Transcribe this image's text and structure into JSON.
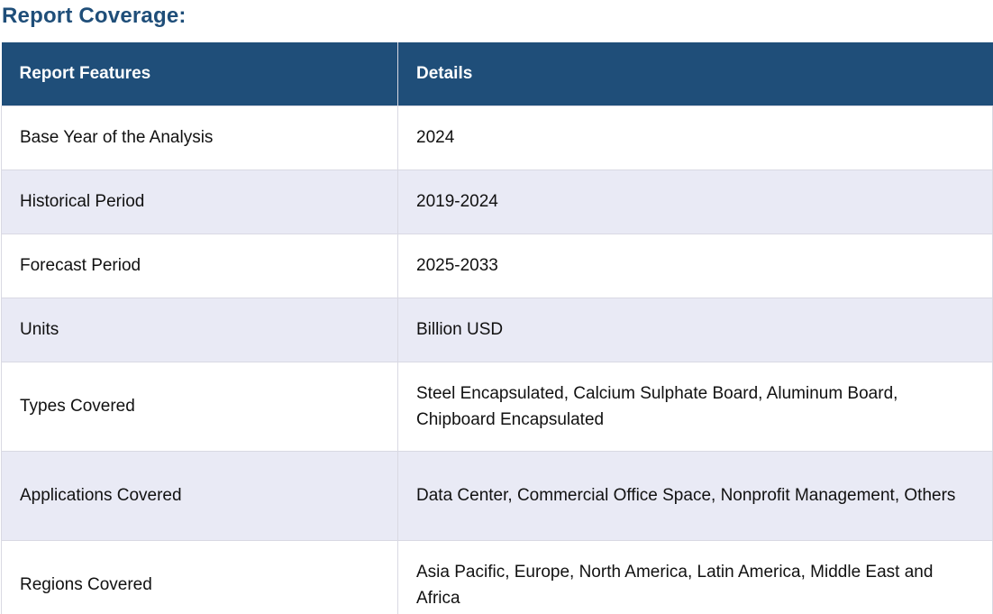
{
  "heading": "Report Coverage:",
  "table": {
    "headers": [
      "Report Features",
      "Details"
    ],
    "rows": [
      [
        "Base Year of the Analysis",
        "2024"
      ],
      [
        "Historical Period",
        "2019-2024"
      ],
      [
        "Forecast Period",
        "2025-2033"
      ],
      [
        "Units",
        "Billion USD"
      ],
      [
        "Types Covered",
        "Steel Encapsulated, Calcium Sulphate Board, Aluminum Board, Chipboard Encapsulated"
      ],
      [
        "Applications Covered",
        "Data Center, Commercial Office Space, Nonprofit Management, Others"
      ],
      [
        "Regions Covered",
        "Asia Pacific, Europe, North America, Latin America, Middle East and Africa"
      ]
    ]
  },
  "colors": {
    "heading": "#1f4e79",
    "header_bg": "#1f4e79",
    "alt_row_bg": "#e9eaf5",
    "border": "#d9d9e3"
  }
}
